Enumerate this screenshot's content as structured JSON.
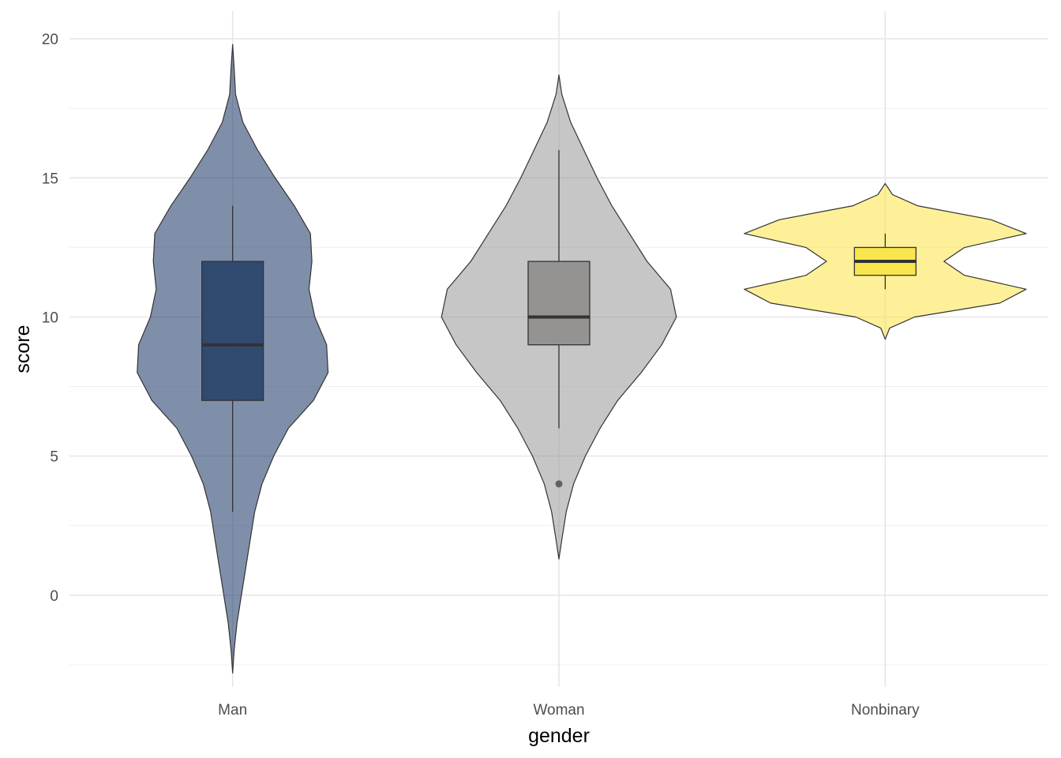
{
  "chart_data": {
    "type": "violin",
    "xlabel": "gender",
    "ylabel": "score",
    "categories": [
      "Man",
      "Woman",
      "Nonbinary"
    ],
    "ylim": [
      -3.3,
      21.0
    ],
    "yticks": [
      0,
      5,
      10,
      15,
      20
    ],
    "y_minor_ticks": [
      -2.5,
      2.5,
      7.5,
      12.5,
      17.5
    ],
    "grid": true,
    "legend": "none",
    "groups": [
      {
        "name": "Man",
        "fill": "#1f3a68",
        "box_fill": "#233e66",
        "violin_range": [
          -2.8,
          19.8
        ],
        "density": [
          [
            -2.8,
            0.0
          ],
          [
            -2.0,
            0.01
          ],
          [
            -1.0,
            0.03
          ],
          [
            0.0,
            0.06
          ],
          [
            1.0,
            0.09
          ],
          [
            2.0,
            0.12
          ],
          [
            3.0,
            0.15
          ],
          [
            4.0,
            0.2
          ],
          [
            5.0,
            0.28
          ],
          [
            6.0,
            0.38
          ],
          [
            7.0,
            0.55
          ],
          [
            8.0,
            0.65
          ],
          [
            9.0,
            0.64
          ],
          [
            10.0,
            0.56
          ],
          [
            11.0,
            0.52
          ],
          [
            12.0,
            0.54
          ],
          [
            13.0,
            0.53
          ],
          [
            14.0,
            0.42
          ],
          [
            15.0,
            0.29
          ],
          [
            16.0,
            0.17
          ],
          [
            17.0,
            0.07
          ],
          [
            18.0,
            0.02
          ],
          [
            19.0,
            0.01
          ],
          [
            19.8,
            0.0
          ]
        ],
        "box": {
          "q1": 7,
          "median": 9,
          "q3": 12,
          "whisker_low": 3,
          "whisker_high": 14
        },
        "outliers": []
      },
      {
        "name": "Woman",
        "fill": "#9b9b9b",
        "box_fill": "#8c8a87",
        "violin_range": [
          1.3,
          18.7
        ],
        "density": [
          [
            1.3,
            0.0
          ],
          [
            2.0,
            0.02
          ],
          [
            3.0,
            0.05
          ],
          [
            4.0,
            0.1
          ],
          [
            5.0,
            0.18
          ],
          [
            6.0,
            0.28
          ],
          [
            7.0,
            0.4
          ],
          [
            8.0,
            0.56
          ],
          [
            9.0,
            0.7
          ],
          [
            10.0,
            0.8
          ],
          [
            11.0,
            0.76
          ],
          [
            12.0,
            0.6
          ],
          [
            13.0,
            0.48
          ],
          [
            14.0,
            0.36
          ],
          [
            15.0,
            0.26
          ],
          [
            16.0,
            0.17
          ],
          [
            17.0,
            0.08
          ],
          [
            18.0,
            0.02
          ],
          [
            18.7,
            0.0
          ]
        ],
        "box": {
          "q1": 9,
          "median": 10,
          "q3": 12,
          "whisker_low": 6,
          "whisker_high": 16
        },
        "outliers": [
          4
        ]
      },
      {
        "name": "Nonbinary",
        "fill": "#fbe54a",
        "box_fill": "#f8e442",
        "violin_range": [
          9.2,
          14.8
        ],
        "density": [
          [
            9.2,
            0.0
          ],
          [
            9.6,
            0.03
          ],
          [
            10.0,
            0.2
          ],
          [
            10.5,
            0.78
          ],
          [
            11.0,
            0.96
          ],
          [
            11.5,
            0.54
          ],
          [
            12.0,
            0.4
          ],
          [
            12.5,
            0.54
          ],
          [
            13.0,
            0.96
          ],
          [
            13.5,
            0.72
          ],
          [
            14.0,
            0.22
          ],
          [
            14.4,
            0.05
          ],
          [
            14.8,
            0.0
          ]
        ],
        "box": {
          "q1": 11.5,
          "median": 12,
          "q3": 12.5,
          "whisker_low": 11,
          "whisker_high": 13
        },
        "outliers": []
      }
    ]
  }
}
